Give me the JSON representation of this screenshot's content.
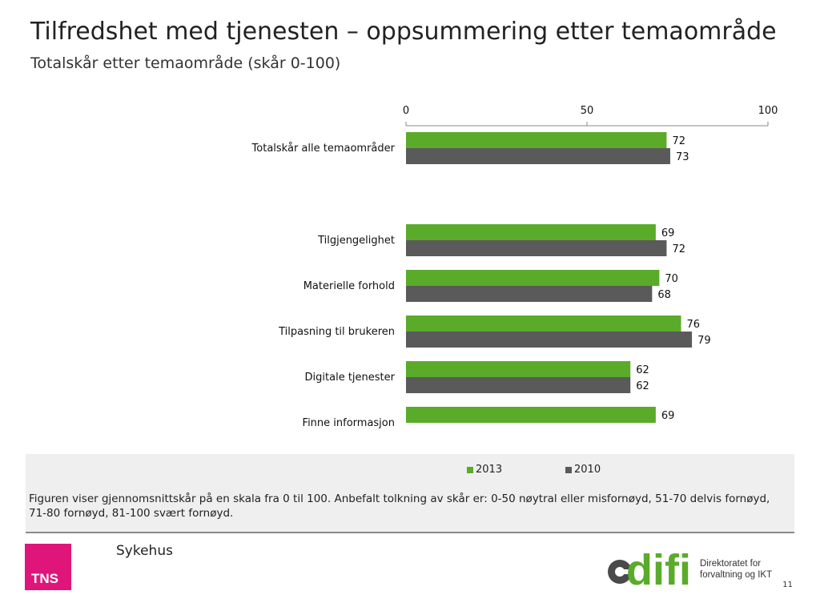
{
  "title": "Tilfredshet med tjenesten – oppsummering etter temaområde",
  "subtitle": "Totalskår etter temaområde (skår 0-100)",
  "chart_data": {
    "type": "bar",
    "orientation": "horizontal",
    "xlim": [
      0,
      100
    ],
    "ticks": [
      "0",
      "50",
      "100"
    ],
    "categories": [
      "Totalskår alle temaområder",
      "Tilgjengelighet",
      "Materielle forhold",
      "Tilpasning til brukeren",
      "Digitale tjenester",
      "Finne informasjon"
    ],
    "series": [
      {
        "name": "2013",
        "color": "#5aab2a",
        "values": [
          72,
          69,
          70,
          76,
          62,
          69
        ]
      },
      {
        "name": "2010",
        "color": "#5a5a5a",
        "values": [
          73,
          72,
          68,
          79,
          62,
          null
        ]
      }
    ],
    "legend_position": "bottom"
  },
  "note": "Figuren viser gjennomsnittskår på en skala fra 0 til 100. Anbefalt tolkning av skår er: 0-50 nøytral eller misfornøyd, 51-70 delvis fornøyd, 71-80 fornøyd, 81-100 svært fornøyd.",
  "footer": {
    "label": "Sykehus",
    "tns_logo": "TNS",
    "difi_brand": "difi",
    "difi_tagline_line1": "Direktoratet for",
    "difi_tagline_line2": "forvaltning og IKT",
    "page_number": "11"
  },
  "colors": {
    "accent_green": "#5aab2a",
    "dark_grey": "#5a5a5a",
    "tns_pink": "#e0157a"
  }
}
